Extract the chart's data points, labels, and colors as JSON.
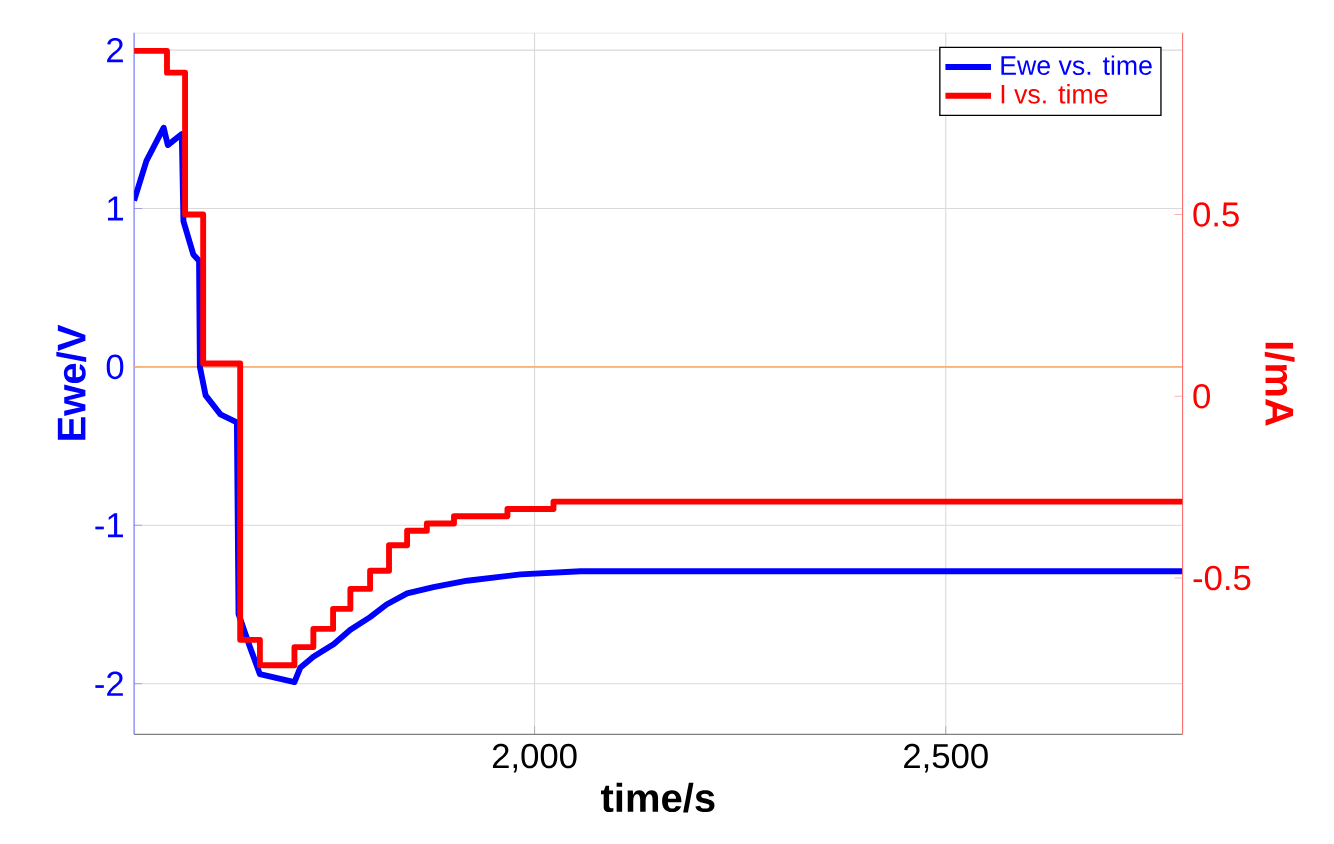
{
  "chart_data": {
    "type": "line",
    "xlabel": "time/s",
    "ylabel": "Ewe/V",
    "y2label": "I/mA",
    "xlim": [
      1513,
      2788
    ],
    "ylim": [
      -2.32,
      2.11
    ],
    "y2lim": [
      -0.93,
      1.0
    ],
    "xticks": [
      {
        "value": 2000,
        "label": "2,000"
      },
      {
        "value": 2500,
        "label": "2,500"
      }
    ],
    "yticks": [
      -2,
      -1,
      0,
      1,
      2
    ],
    "y2ticks": [
      -0.5,
      0,
      0.5
    ],
    "grid": true,
    "legend": "top right",
    "ref_lines": [
      {
        "axis": "y",
        "value": 0,
        "color": "#f5b27a"
      }
    ],
    "series": [
      {
        "name": "Ewe vs. time",
        "color": "#0000ff",
        "x": [
          1513,
          1528,
          1549,
          1554,
          1571,
          1573,
          1585,
          1592,
          1593,
          1600,
          1618,
          1638,
          1640,
          1654,
          1666,
          1708,
          1715,
          1731,
          1756,
          1776,
          1800,
          1820,
          1845,
          1877,
          1918,
          1983,
          2056,
          2104,
          2788
        ],
        "values": [
          1.05,
          1.3,
          1.51,
          1.4,
          1.47,
          0.92,
          0.71,
          0.67,
          0.0,
          -0.18,
          -0.3,
          -0.35,
          -1.56,
          -1.77,
          -1.94,
          -1.99,
          -1.9,
          -1.83,
          -1.75,
          -1.66,
          -1.58,
          -1.5,
          -1.43,
          -1.39,
          -1.35,
          -1.31,
          -1.29,
          -1.29,
          -1.29
        ]
      },
      {
        "name": "I vs. time",
        "color": "#ff0000",
        "type": "step",
        "axis": "y2",
        "x": [
          1513,
          1553,
          1575,
          1597,
          1642,
          1666,
          1708,
          1731,
          1755,
          1776,
          1800,
          1823,
          1845,
          1869,
          1902,
          1967,
          2023,
          2788
        ],
        "values": [
          0.95,
          0.89,
          0.5,
          0.09,
          -0.67,
          -0.74,
          -0.69,
          -0.64,
          -0.585,
          -0.53,
          -0.48,
          -0.41,
          -0.37,
          -0.35,
          -0.33,
          -0.31,
          -0.29,
          -0.29
        ]
      }
    ]
  }
}
